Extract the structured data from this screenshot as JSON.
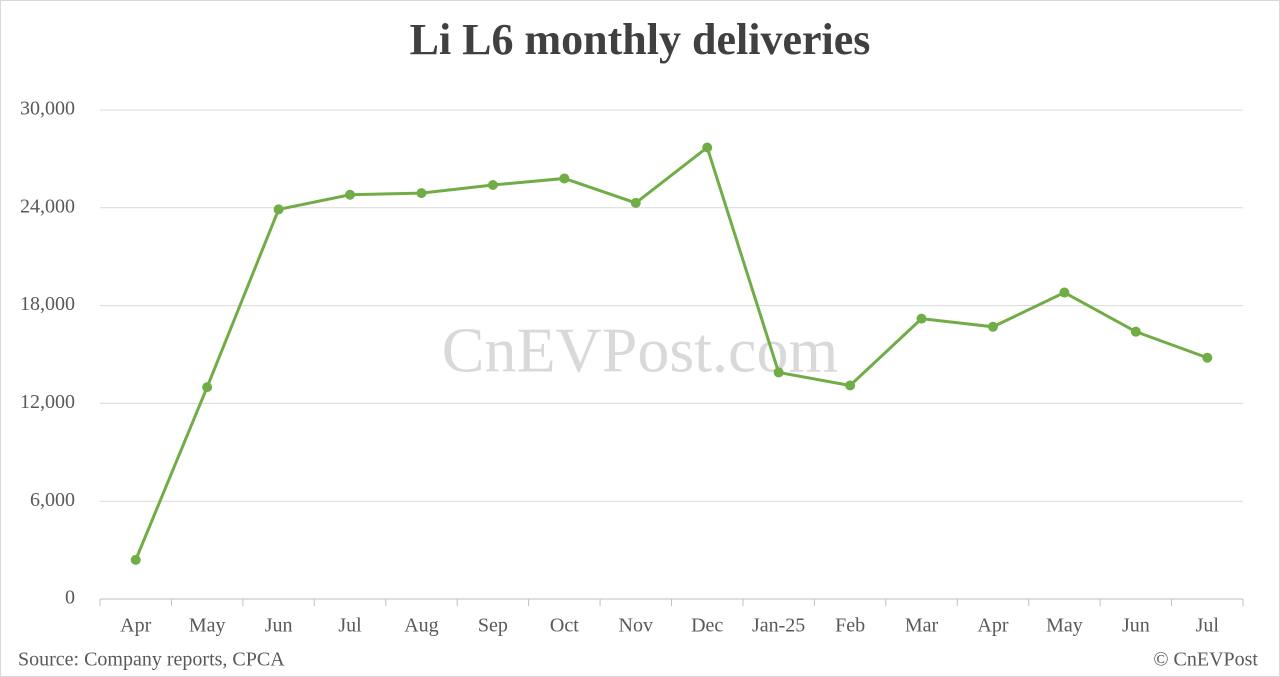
{
  "chart_data": {
    "type": "line",
    "title": "Li L6 monthly deliveries",
    "watermark": "CnEVPost.com",
    "source": "Source: Company reports, CPCA",
    "copyright": "© CnEVPost",
    "categories": [
      "Apr",
      "May",
      "Jun",
      "Jul",
      "Aug",
      "Sep",
      "Oct",
      "Nov",
      "Dec",
      "Jan-25",
      "Feb",
      "Mar",
      "Apr",
      "May",
      "Jun",
      "Jul"
    ],
    "series": [
      {
        "name": "Li L6",
        "color": "#70ad47",
        "values": [
          2400,
          13000,
          23900,
          24800,
          24900,
          25400,
          25800,
          24300,
          27700,
          13900,
          13100,
          17200,
          16700,
          18800,
          16400,
          14800
        ]
      }
    ],
    "ylim": [
      0,
      30000
    ],
    "yticks": [
      0,
      {
        "value": 6000,
        "label": "6,000"
      },
      {
        "value": 12000,
        "label": "12,000"
      },
      {
        "value": 18000,
        "label": "18,000"
      },
      {
        "value": 24000,
        "label": "24,000"
      },
      {
        "value": 30000,
        "label": "30,000"
      }
    ],
    "grid": true
  }
}
